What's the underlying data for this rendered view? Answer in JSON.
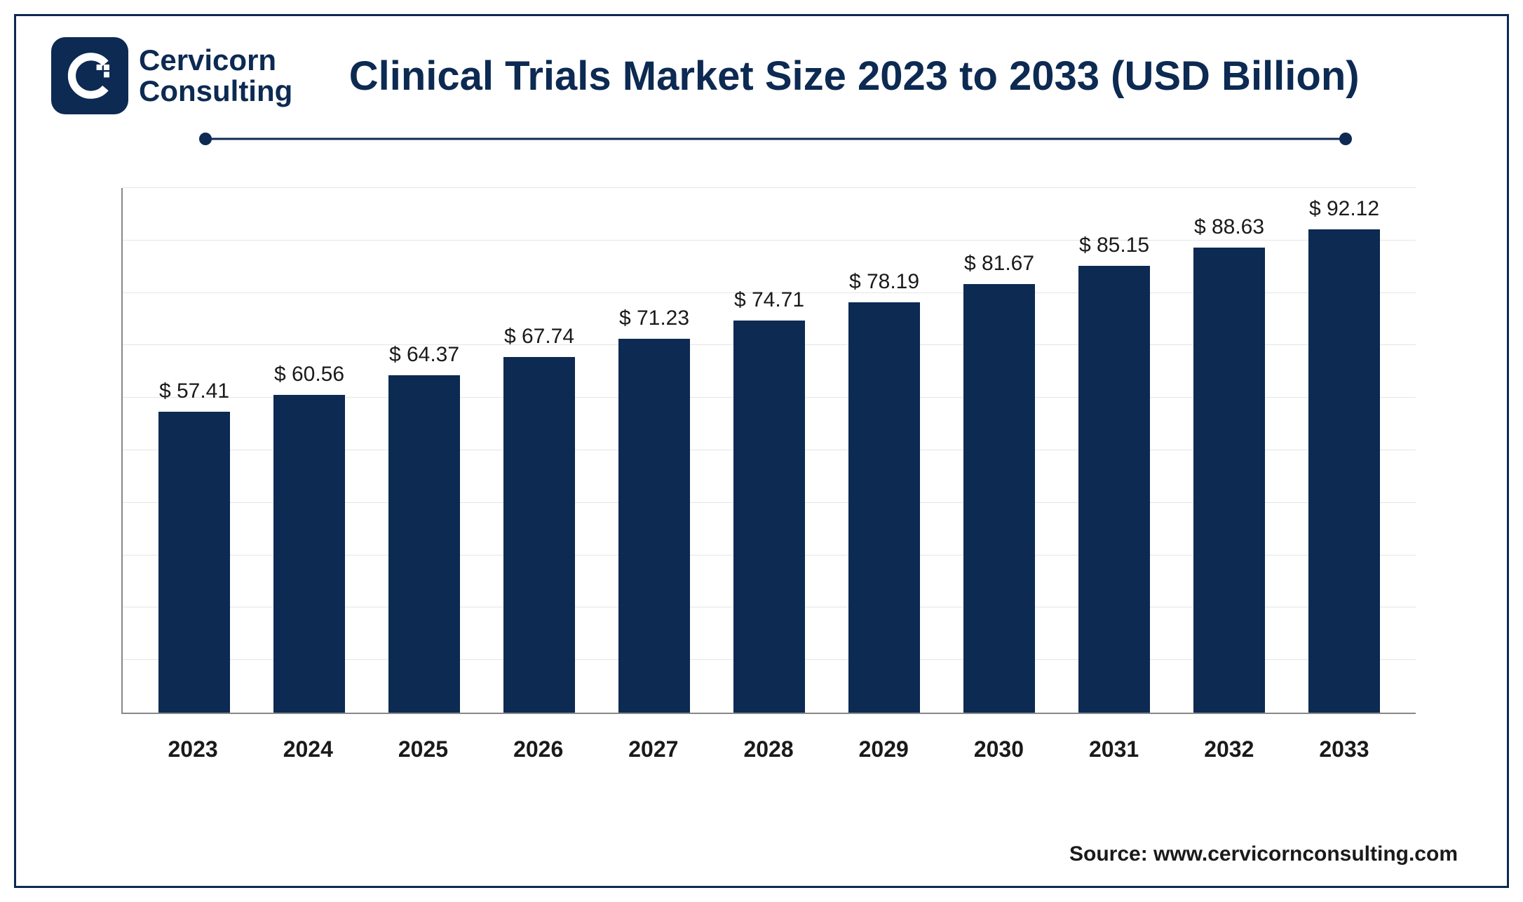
{
  "brand": {
    "name_line1": "Cervicorn",
    "name_line2": "Consulting",
    "logo_bg": "#0c2a52",
    "logo_fg": "#ffffff"
  },
  "title": "Clinical Trials Market Size 2023 to 2033 (USD Billion)",
  "divider": {
    "color": "#0c2a52"
  },
  "chart": {
    "type": "bar",
    "bar_color": "#0c2a52",
    "grid_color": "#e5e5e5",
    "axis_color": "#888888",
    "background_color": "#ffffff",
    "label_prefix": "$ ",
    "label_fontsize": 30,
    "xlabel_fontsize": 32,
    "title_fontsize": 58,
    "ylim": [
      0,
      100
    ],
    "gridlines": [
      10,
      20,
      30,
      40,
      50,
      60,
      70,
      80,
      90,
      100
    ],
    "bar_width_pct": 62,
    "categories": [
      "2023",
      "2024",
      "2025",
      "2026",
      "2027",
      "2028",
      "2029",
      "2030",
      "2031",
      "2032",
      "2033"
    ],
    "values": [
      57.41,
      60.56,
      64.37,
      67.74,
      71.23,
      74.71,
      78.19,
      81.67,
      85.15,
      88.63,
      92.12
    ]
  },
  "source": "Source: www.cervicornconsulting.com"
}
